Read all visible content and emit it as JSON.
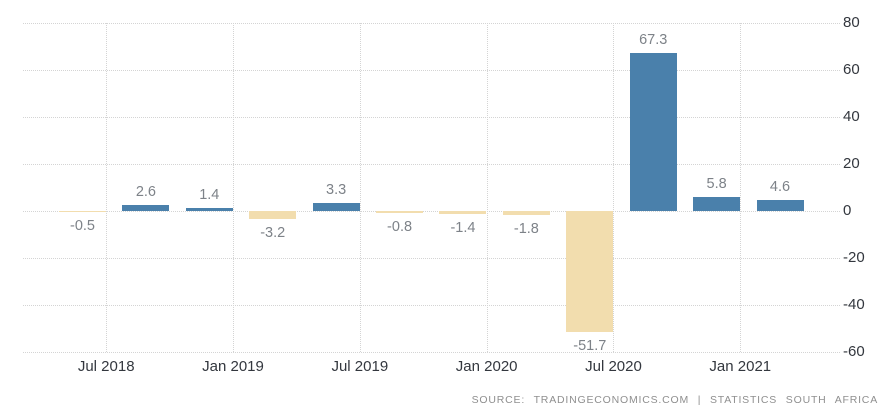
{
  "chart_data": {
    "type": "bar",
    "title": "",
    "xlabel": "",
    "ylabel": "",
    "values": [
      -0.5,
      2.6,
      1.4,
      -3.2,
      3.3,
      -0.8,
      -1.4,
      -1.8,
      -51.7,
      67.3,
      5.8,
      4.6
    ],
    "value_labels": [
      "-0.5",
      "2.6",
      "1.4",
      "-3.2",
      "3.3",
      "-0.8",
      "-1.4",
      "-1.8",
      "-51.7",
      "67.3",
      "5.8",
      "4.6"
    ],
    "x_tick_labels": [
      "Jul 2018",
      "Jan 2019",
      "Jul 2019",
      "Jan 2020",
      "Jul 2020",
      "Jan 2021"
    ],
    "y_ticks": [
      80,
      60,
      40,
      20,
      0,
      -20,
      -40,
      -60
    ],
    "y_tick_labels": [
      "80",
      "60",
      "40",
      "20",
      "0",
      "-20",
      "-40",
      "-60"
    ],
    "ylim": [
      -60,
      80
    ],
    "grid": "dotted",
    "legend_position": "none",
    "positive_color": "#4a80ab",
    "negative_color": "#f2ddae"
  },
  "source": {
    "text": "SOURCE: TRADINGECONOMICS.COM | STATISTICS SOUTH AFRICA"
  }
}
